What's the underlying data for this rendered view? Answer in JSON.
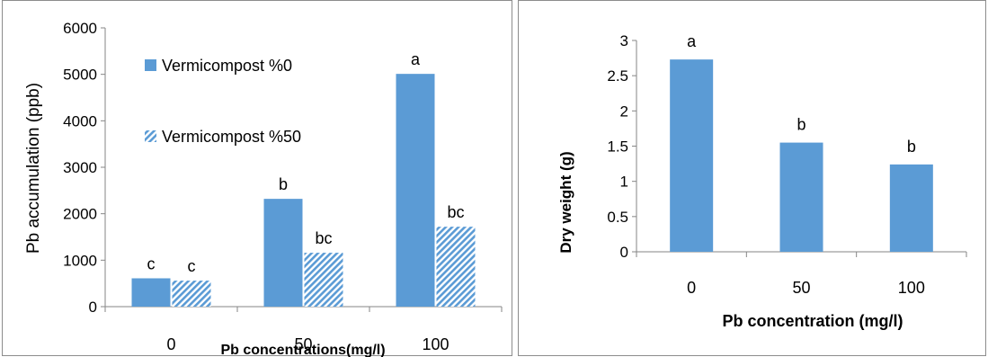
{
  "chart_data": [
    {
      "type": "bar",
      "categories": [
        "0",
        "50",
        "100"
      ],
      "series": [
        {
          "name": "Vermicompost %0",
          "values": [
            610,
            2320,
            5010
          ],
          "labels": [
            "c",
            "b",
            "a"
          ],
          "color": "#5B9BD5",
          "pattern": "solid"
        },
        {
          "name": "Vermicompost %50",
          "values": [
            560,
            1160,
            1720
          ],
          "labels": [
            "c",
            "bc",
            "bc"
          ],
          "color": "#9DC3E6",
          "pattern": "diagonal-hatch"
        }
      ],
      "yticks": [
        "0",
        "1000",
        "2000",
        "3000",
        "4000",
        "5000",
        "6000"
      ],
      "ylim": [
        0,
        6000
      ],
      "xlabel": "Pb  concentrations(mg/l)",
      "ylabel": "Pb accumulation (ppb)",
      "legend": "inside top-left",
      "grid": false
    },
    {
      "type": "bar",
      "categories": [
        "0",
        "50",
        "100"
      ],
      "series": [
        {
          "values": [
            2.73,
            1.55,
            1.24
          ],
          "labels": [
            "a",
            "b",
            "b"
          ],
          "color": "#5B9BD5"
        }
      ],
      "yticks": [
        "0",
        "0.5",
        "1",
        "1.5",
        "2",
        "2.5",
        "3"
      ],
      "ylim": [
        0,
        3
      ],
      "xlabel": "Pb concentration  (mg/l)",
      "ylabel": "Dry weight (g)",
      "grid": false
    }
  ]
}
